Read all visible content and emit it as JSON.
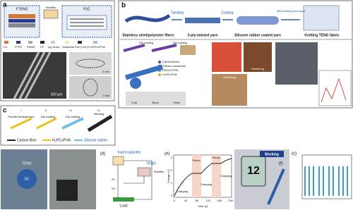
{
  "panel_a": {
    "label": "a",
    "fteng": "FTENG",
    "rectifier": "Rectifier",
    "fsc": "FSC",
    "legend": [
      "Cu",
      "PTFE",
      "PDMS",
      "CF",
      "Ag Slurry",
      "Substrate",
      "RuO₂·nH₂O",
      "H₃PO₄/PVA"
    ],
    "scale_bars": [
      "100 μm",
      "2 mm",
      "1 mm"
    ]
  },
  "panel_b": {
    "label": "b",
    "steps": [
      "Twisting",
      "Coating",
      "Weft-knitting technique"
    ],
    "materials": [
      "Stainless steel/polyester fibers",
      "3-ply-twisted yarn",
      "Silicone rubber coated yarn",
      "Knitting TENG fabric"
    ],
    "dip": [
      "Dip-coating",
      "Dip-coating"
    ],
    "legend": [
      "Carbon fibers",
      "Carbon nanotubes",
      "PEDOT:PSS",
      "H₃PO₄/PVA"
    ],
    "deform": [
      "Fold",
      "Bend",
      "Twist"
    ],
    "stretch": [
      "Stretching",
      "Stretching"
    ]
  },
  "panel_c": {
    "label": "c",
    "stages": [
      "I",
      "II",
      "III",
      "IV"
    ],
    "steps": [
      "Parallel arrangement",
      "Dip coating",
      "Dip coating",
      "Winding"
    ],
    "legend": [
      "Carbon fiber",
      "H₃PO₄/PVA",
      "Silicone rubber"
    ]
  },
  "photo": {
    "teng": "TENG",
    "sc": "SC"
  },
  "panel_d": {
    "label": "(d)",
    "supercap": "Supercapacitor",
    "teng": "TENG",
    "rectifier": "Rectifier",
    "load": "Load",
    "switches": [
      "S1",
      "S2"
    ]
  },
  "panel_e": {
    "label": "(e)",
    "pause": [
      "Pause",
      "Pause"
    ],
    "charging": [
      "Charging",
      "Charging",
      "Charging"
    ],
    "ylabel": "Voltage (V)",
    "xlabel": "Time (s)",
    "xticks": [
      "0",
      "40",
      "80",
      "120",
      "160",
      "200"
    ],
    "yticks": [
      "0",
      "1",
      "2",
      "3"
    ]
  },
  "panel_f": {
    "label": "(f)",
    "working": "Working",
    "display": "12"
  },
  "panel_c2": {
    "label": "(c)"
  }
}
